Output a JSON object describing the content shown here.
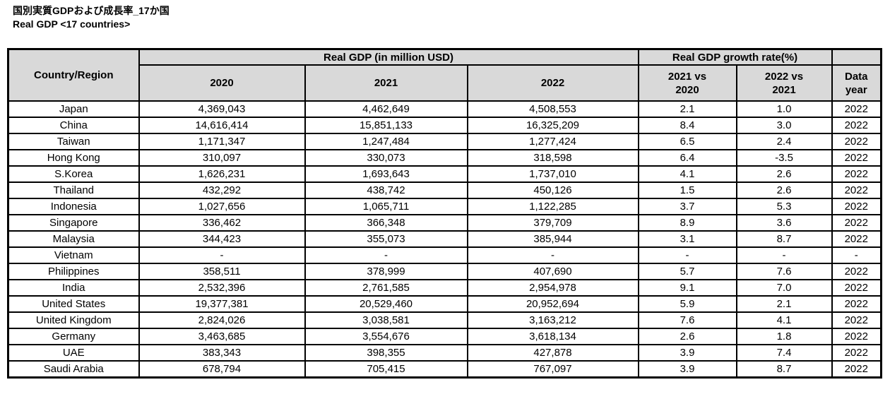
{
  "page": {
    "title_ja": "国別実質GDPおよび成長率_17か国",
    "title_en": "Real GDP <17 countries>"
  },
  "colors": {
    "header_bg": "#d9d9d9",
    "border": "#000000",
    "text": "#000000",
    "cell_bg": "#ffffff"
  },
  "table": {
    "header": {
      "country_region": "Country/Region",
      "gdp_group": "Real GDP (in million USD)",
      "growth_group": "Real GDP growth rate(%)",
      "years": [
        "2020",
        "2021",
        "2022"
      ],
      "growth_cols": [
        "2021 vs\n2020",
        "2022 vs\n2021"
      ],
      "data_year": "Data\nyear"
    },
    "rows": [
      {
        "country": "Japan",
        "gdp_2020": "4,369,043",
        "gdp_2021": "4,462,649",
        "gdp_2022": "4,508,553",
        "growth_2021_vs_2020": "2.1",
        "growth_2022_vs_2021": "1.0",
        "data_year": "2022"
      },
      {
        "country": "China",
        "gdp_2020": "14,616,414",
        "gdp_2021": "15,851,133",
        "gdp_2022": "16,325,209",
        "growth_2021_vs_2020": "8.4",
        "growth_2022_vs_2021": "3.0",
        "data_year": "2022"
      },
      {
        "country": "Taiwan",
        "gdp_2020": "1,171,347",
        "gdp_2021": "1,247,484",
        "gdp_2022": "1,277,424",
        "growth_2021_vs_2020": "6.5",
        "growth_2022_vs_2021": "2.4",
        "data_year": "2022"
      },
      {
        "country": "Hong Kong",
        "gdp_2020": "310,097",
        "gdp_2021": "330,073",
        "gdp_2022": "318,598",
        "growth_2021_vs_2020": "6.4",
        "growth_2022_vs_2021": "-3.5",
        "data_year": "2022"
      },
      {
        "country": "S.Korea",
        "gdp_2020": "1,626,231",
        "gdp_2021": "1,693,643",
        "gdp_2022": "1,737,010",
        "growth_2021_vs_2020": "4.1",
        "growth_2022_vs_2021": "2.6",
        "data_year": "2022"
      },
      {
        "country": "Thailand",
        "gdp_2020": "432,292",
        "gdp_2021": "438,742",
        "gdp_2022": "450,126",
        "growth_2021_vs_2020": "1.5",
        "growth_2022_vs_2021": "2.6",
        "data_year": "2022"
      },
      {
        "country": "Indonesia",
        "gdp_2020": "1,027,656",
        "gdp_2021": "1,065,711",
        "gdp_2022": "1,122,285",
        "growth_2021_vs_2020": "3.7",
        "growth_2022_vs_2021": "5.3",
        "data_year": "2022"
      },
      {
        "country": "Singapore",
        "gdp_2020": "336,462",
        "gdp_2021": "366,348",
        "gdp_2022": "379,709",
        "growth_2021_vs_2020": "8.9",
        "growth_2022_vs_2021": "3.6",
        "data_year": "2022"
      },
      {
        "country": "Malaysia",
        "gdp_2020": "344,423",
        "gdp_2021": "355,073",
        "gdp_2022": "385,944",
        "growth_2021_vs_2020": "3.1",
        "growth_2022_vs_2021": "8.7",
        "data_year": "2022"
      },
      {
        "country": "Vietnam",
        "gdp_2020": "-",
        "gdp_2021": "-",
        "gdp_2022": "-",
        "growth_2021_vs_2020": "-",
        "growth_2022_vs_2021": "-",
        "data_year": "-"
      },
      {
        "country": "Philippines",
        "gdp_2020": "358,511",
        "gdp_2021": "378,999",
        "gdp_2022": "407,690",
        "growth_2021_vs_2020": "5.7",
        "growth_2022_vs_2021": "7.6",
        "data_year": "2022"
      },
      {
        "country": "India",
        "gdp_2020": "2,532,396",
        "gdp_2021": "2,761,585",
        "gdp_2022": "2,954,978",
        "growth_2021_vs_2020": "9.1",
        "growth_2022_vs_2021": "7.0",
        "data_year": "2022"
      },
      {
        "country": "United States",
        "gdp_2020": "19,377,381",
        "gdp_2021": "20,529,460",
        "gdp_2022": "20,952,694",
        "growth_2021_vs_2020": "5.9",
        "growth_2022_vs_2021": "2.1",
        "data_year": "2022"
      },
      {
        "country": "United Kingdom",
        "gdp_2020": "2,824,026",
        "gdp_2021": "3,038,581",
        "gdp_2022": "3,163,212",
        "growth_2021_vs_2020": "7.6",
        "growth_2022_vs_2021": "4.1",
        "data_year": "2022"
      },
      {
        "country": "Germany",
        "gdp_2020": "3,463,685",
        "gdp_2021": "3,554,676",
        "gdp_2022": "3,618,134",
        "growth_2021_vs_2020": "2.6",
        "growth_2022_vs_2021": "1.8",
        "data_year": "2022"
      },
      {
        "country": "UAE",
        "gdp_2020": "383,343",
        "gdp_2021": "398,355",
        "gdp_2022": "427,878",
        "growth_2021_vs_2020": "3.9",
        "growth_2022_vs_2021": "7.4",
        "data_year": "2022"
      },
      {
        "country": "Saudi Arabia",
        "gdp_2020": "678,794",
        "gdp_2021": "705,415",
        "gdp_2022": "767,097",
        "growth_2021_vs_2020": "3.9",
        "growth_2022_vs_2021": "8.7",
        "data_year": "2022"
      }
    ]
  }
}
